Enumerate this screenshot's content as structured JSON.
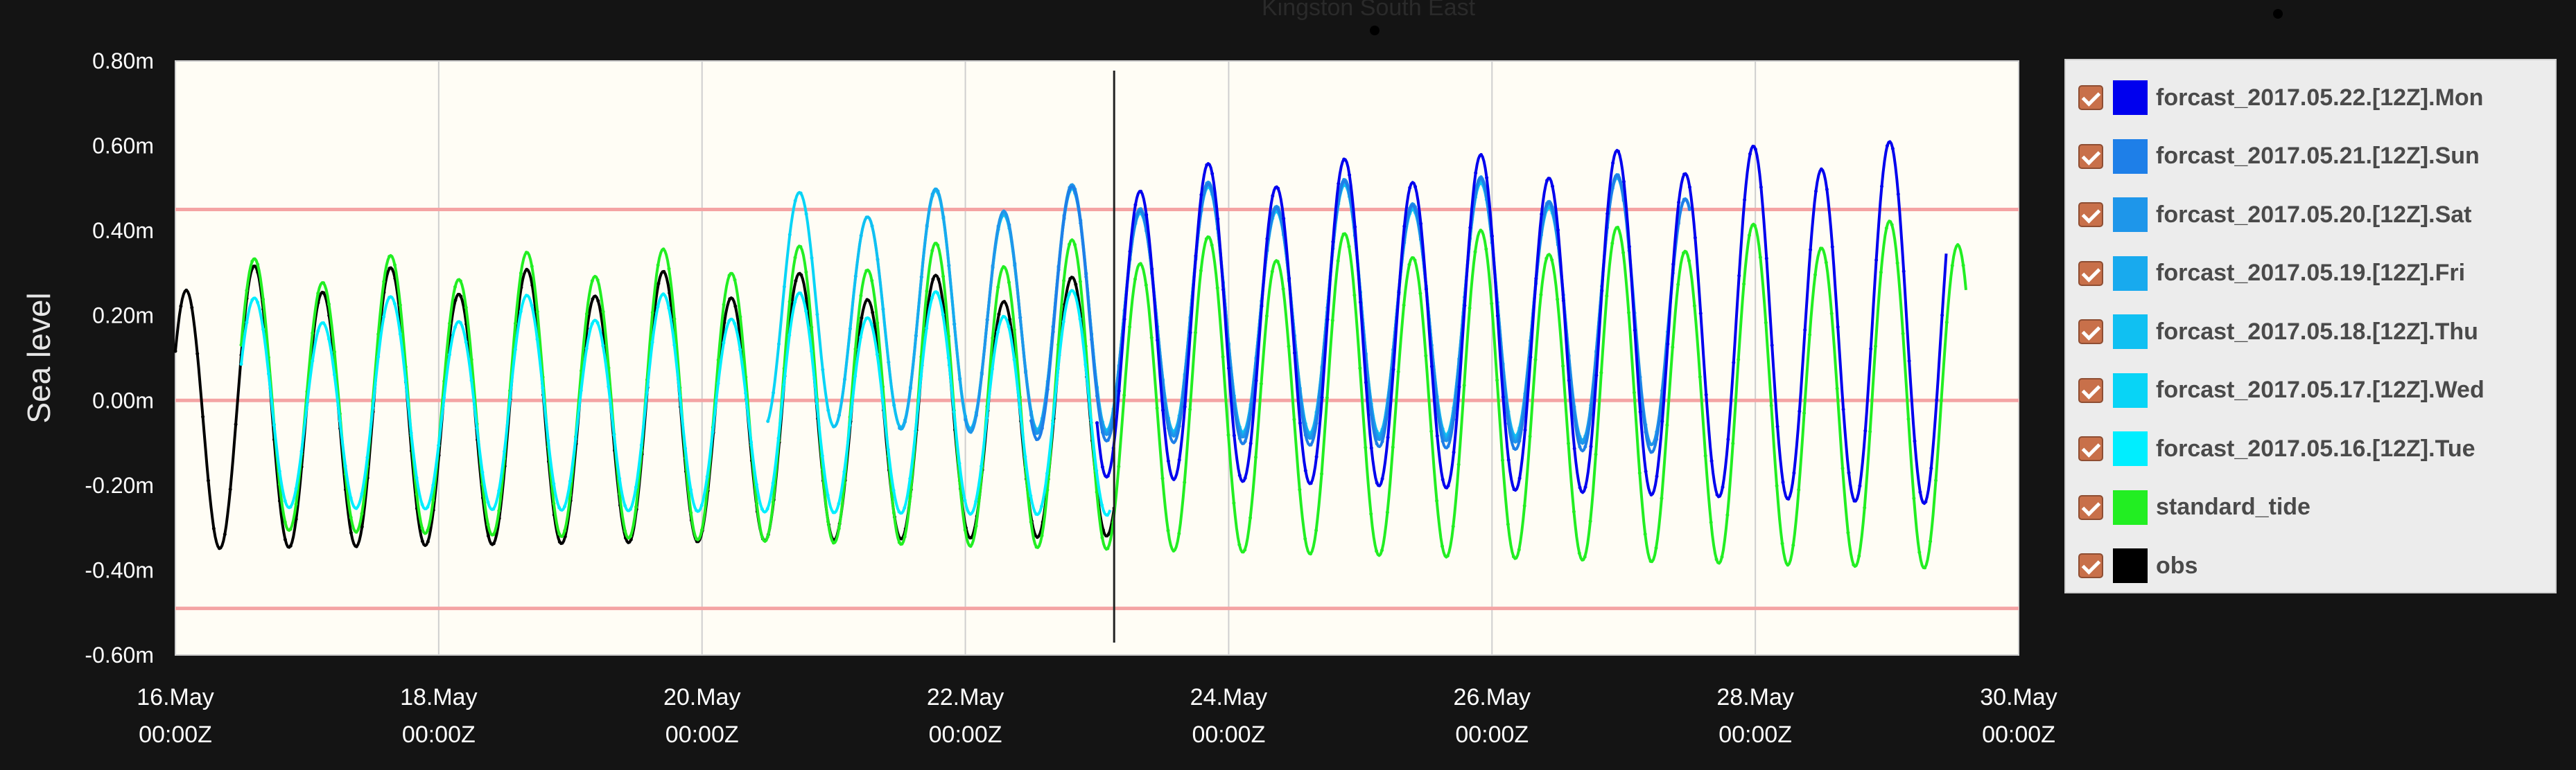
{
  "background_label": "Kingston South East",
  "chart_data": {
    "type": "line",
    "ylabel": "Sea level",
    "ylim": [
      -0.6,
      0.8
    ],
    "yticks": [
      "0.80m",
      "0.60m",
      "0.40m",
      "0.20m",
      "0.00m",
      "-0.20m",
      "-0.40m",
      "-0.60m"
    ],
    "ytick_values": [
      0.8,
      0.6,
      0.4,
      0.2,
      0.0,
      -0.2,
      -0.4,
      -0.6
    ],
    "xlim_days": [
      16,
      30
    ],
    "xticks": [
      {
        "day": 16,
        "date": "16.May",
        "time": "00:00Z"
      },
      {
        "day": 18,
        "date": "18.May",
        "time": "00:00Z"
      },
      {
        "day": 20,
        "date": "20.May",
        "time": "00:00Z"
      },
      {
        "day": 22,
        "date": "22.May",
        "time": "00:00Z"
      },
      {
        "day": 24,
        "date": "24.May",
        "time": "00:00Z"
      },
      {
        "day": 26,
        "date": "26.May",
        "time": "00:00Z"
      },
      {
        "day": 28,
        "date": "28.May",
        "time": "00:00Z"
      },
      {
        "day": 30,
        "date": "30.May",
        "time": "00:00Z"
      }
    ],
    "threshold_lines": [
      0.45,
      0.0,
      -0.49
    ],
    "now_marker_day": 23.13,
    "grid": true,
    "legend_position": "right",
    "plot_background": "#fffdf5",
    "semidiurnal_period_days": 0.5175,
    "series": [
      {
        "name": "forcast_2017.05.22.[12Z].Mon",
        "color": "#0000ee",
        "start": 23.0,
        "end": 29.45,
        "phase": 16.6,
        "amp_start": 0.28,
        "amp_end": 0.42,
        "mean": 0.17
      },
      {
        "name": "forcast_2017.05.21.[12Z].Sun",
        "color": "#1e7fe8",
        "start": 22.5,
        "end": 27.5,
        "phase": 16.6,
        "amp_start": 0.24,
        "amp_end": 0.33,
        "mean": 0.19
      },
      {
        "name": "forcast_2017.05.20.[12Z].Sat",
        "color": "#1e96ea",
        "start": 22.0,
        "end": 27.5,
        "phase": 16.6,
        "amp_start": 0.24,
        "amp_end": 0.32,
        "mean": 0.2
      },
      {
        "name": "forcast_2017.05.19.[12Z].Fri",
        "color": "#18aaee",
        "start": 21.5,
        "end": 27.0,
        "phase": 16.6,
        "amp_start": 0.24,
        "amp_end": 0.31,
        "mean": 0.2
      },
      {
        "name": "forcast_2017.05.18.[12Z].Thu",
        "color": "#10c0f2",
        "start": 21.0,
        "end": 26.5,
        "phase": 16.6,
        "amp_start": 0.24,
        "amp_end": 0.3,
        "mean": 0.2
      },
      {
        "name": "forcast_2017.05.17.[12Z].Wed",
        "color": "#08d4f6",
        "start": 20.5,
        "end": 26.0,
        "phase": 16.6,
        "amp_start": 0.24,
        "amp_end": 0.3,
        "mean": 0.2
      },
      {
        "name": "forcast_2017.05.16.[12Z].Tue",
        "color": "#00eeff",
        "start": 16.5,
        "end": 23.1,
        "phase": 16.6,
        "amp_start": 0.23,
        "amp_end": 0.27,
        "mean": -0.02
      },
      {
        "name": "standard_tide",
        "color": "#22ee22",
        "start": 16.5,
        "end": 29.6,
        "phase": 16.6,
        "amp_start": 0.3,
        "amp_end": 0.4,
        "mean": 0.0
      },
      {
        "name": "obs",
        "color": "#000000",
        "start": 16.0,
        "end": 23.13,
        "phase": 16.6,
        "amp_start": 0.32,
        "amp_end": 0.26,
        "mean": -0.03
      }
    ]
  }
}
